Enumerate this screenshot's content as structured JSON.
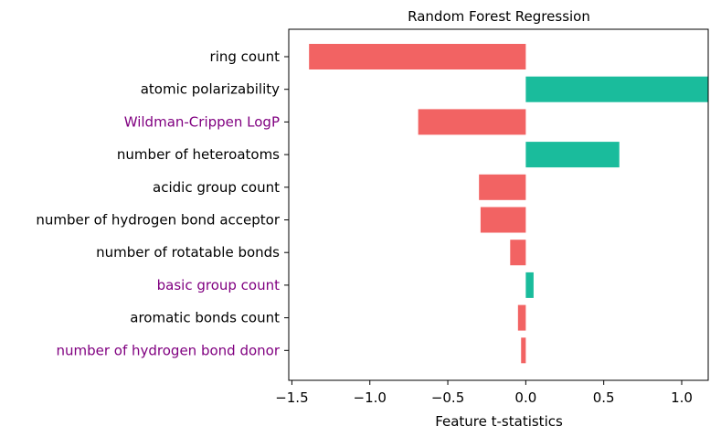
{
  "chart_data": {
    "type": "bar",
    "orientation": "horizontal",
    "title": "Random Forest Regression",
    "xlabel": "Feature t-statistics",
    "ylabel": "",
    "xlim": [
      -1.52,
      1.17
    ],
    "xticks": [
      -1.5,
      -1.0,
      -0.5,
      0.0,
      0.5,
      1.0
    ],
    "xtick_labels": [
      "−1.5",
      "−1.0",
      "−0.5",
      "0.0",
      "0.5",
      "1.0"
    ],
    "categories": [
      "ring count",
      "atomic polarizability",
      "Wildman-Crippen LogP",
      "number of heteroatoms",
      "acidic group count",
      "number of hydrogen bond acceptor",
      "number of rotatable bonds",
      "basic group count",
      "aromatic bonds count",
      "number of hydrogen bond donor"
    ],
    "values": [
      -1.39,
      1.17,
      -0.69,
      0.6,
      -0.3,
      -0.29,
      -0.1,
      0.05,
      -0.05,
      -0.03
    ],
    "label_colors": [
      "#000000",
      "#000000",
      "#800080",
      "#000000",
      "#000000",
      "#000000",
      "#000000",
      "#800080",
      "#000000",
      "#800080"
    ],
    "positive_color": "#1abc9c",
    "negative_color": "#f26363",
    "grid": false,
    "legend": "none"
  }
}
